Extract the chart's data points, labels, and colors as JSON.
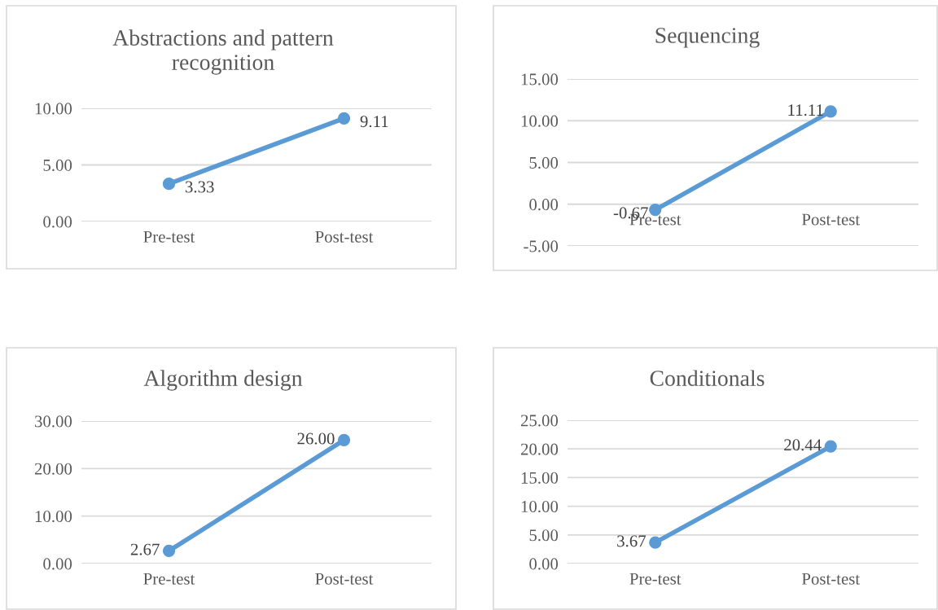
{
  "chart_data": [
    {
      "type": "line",
      "title": "Abstractions and pattern\nrecognition",
      "categories": [
        "Pre-test",
        "Post-test"
      ],
      "series": [
        {
          "color": "#5b9bd5",
          "values": [
            3.33,
            9.11
          ],
          "value_labels": [
            "3.33",
            "9.11"
          ]
        }
      ],
      "ylim": [
        0,
        10
      ],
      "yticks": [
        {
          "value": 0,
          "label": "0.00"
        },
        {
          "value": 5,
          "label": "5.00"
        },
        {
          "value": 10,
          "label": "10.00"
        }
      ],
      "grid": "y",
      "marker": "circle",
      "line_style": "solid",
      "legend": false
    },
    {
      "type": "line",
      "title": "Sequencing",
      "categories": [
        "Pre-test",
        "Post-test"
      ],
      "series": [
        {
          "color": "#5b9bd5",
          "values": [
            -0.67,
            11.11
          ],
          "value_labels": [
            "-0.67",
            "11.11"
          ]
        }
      ],
      "ylim": [
        -5,
        15
      ],
      "yticks": [
        {
          "value": -5,
          "label": "-5.00"
        },
        {
          "value": 0,
          "label": "0.00"
        },
        {
          "value": 5,
          "label": "5.00"
        },
        {
          "value": 10,
          "label": "10.00"
        },
        {
          "value": 15,
          "label": "15.00"
        }
      ],
      "grid": "y",
      "marker": "circle",
      "line_style": "solid",
      "legend": false
    },
    {
      "type": "line",
      "title": "Algorithm design",
      "categories": [
        "Pre-test",
        "Post-test"
      ],
      "series": [
        {
          "color": "#5b9bd5",
          "values": [
            2.67,
            26.0
          ],
          "value_labels": [
            "2.67",
            "26.00"
          ]
        }
      ],
      "ylim": [
        0,
        30
      ],
      "yticks": [
        {
          "value": 0,
          "label": "0.00"
        },
        {
          "value": 10,
          "label": "10.00"
        },
        {
          "value": 20,
          "label": "20.00"
        },
        {
          "value": 30,
          "label": "30.00"
        }
      ],
      "grid": "y",
      "marker": "circle",
      "line_style": "solid",
      "legend": false
    },
    {
      "type": "line",
      "title": "Conditionals",
      "categories": [
        "Pre-test",
        "Post-test"
      ],
      "series": [
        {
          "color": "#5b9bd5",
          "values": [
            3.67,
            20.44
          ],
          "value_labels": [
            "3.67",
            "20.44"
          ]
        }
      ],
      "ylim": [
        0,
        25
      ],
      "yticks": [
        {
          "value": 0,
          "label": "0.00"
        },
        {
          "value": 5,
          "label": "5.00"
        },
        {
          "value": 10,
          "label": "10.00"
        },
        {
          "value": 15,
          "label": "15.00"
        },
        {
          "value": 20,
          "label": "20.00"
        },
        {
          "value": 25,
          "label": "25.00"
        }
      ],
      "grid": "y",
      "marker": "circle",
      "line_style": "solid",
      "legend": false
    }
  ]
}
